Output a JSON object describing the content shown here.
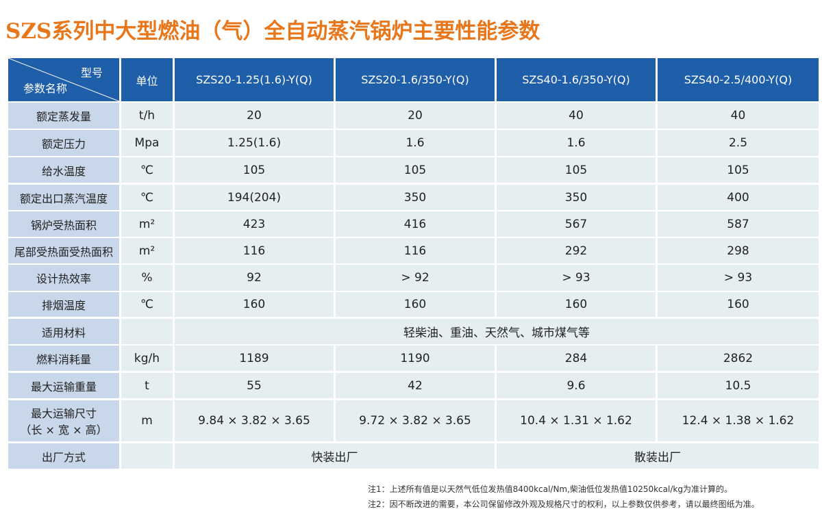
{
  "title": "SZS系列中大型燃油（气）全自动蒸汽锅炉主要性能参数",
  "table": {
    "header": {
      "model_label": "型号",
      "param_label": "参数名称",
      "unit": "单位",
      "models": [
        "SZS20-1.25(1.6)-Y(Q)",
        "SZS20-1.6/350-Y(Q)",
        "SZS40-1.6/350-Y(Q)",
        "SZS40-2.5/400-Y(Q)"
      ]
    },
    "rows": [
      {
        "label": [
          "额定蒸发量"
        ],
        "unit": "t/h",
        "values": [
          "20",
          "20",
          "40",
          "40"
        ]
      },
      {
        "label": [
          "额定压力"
        ],
        "unit": "Mpa",
        "values": [
          "1.25(1.6)",
          "1.6",
          "1.6",
          "2.5"
        ]
      },
      {
        "label": [
          "给水温度"
        ],
        "unit": "℃",
        "values": [
          "105",
          "105",
          "105",
          "105"
        ]
      },
      {
        "label": [
          "额定出口蒸汽温度"
        ],
        "unit": "℃",
        "values": [
          "194(204)",
          "350",
          "350",
          "400"
        ]
      },
      {
        "label": [
          "锅炉受热面积"
        ],
        "unit": "m²",
        "values": [
          "423",
          "416",
          "567",
          "587"
        ]
      },
      {
        "label": [
          "尾部受热面受热面积"
        ],
        "unit": "m²",
        "values": [
          "116",
          "116",
          "292",
          "298"
        ]
      },
      {
        "label": [
          "设计热效率"
        ],
        "unit": "%",
        "values": [
          "92",
          "> 92",
          "> 93",
          "> 93"
        ]
      },
      {
        "label": [
          "排烟温度"
        ],
        "unit": "℃",
        "values": [
          "160",
          "160",
          "160",
          "160"
        ]
      },
      {
        "label": [
          "适用材料"
        ],
        "values": [
          "轻柴油、重油、天然气、城市煤气等"
        ]
      },
      {
        "label": [
          "燃料消耗量"
        ],
        "unit": "kg/h",
        "values": [
          "1189",
          "1190",
          "284",
          "2862"
        ]
      },
      {
        "label": [
          "最大运输重量"
        ],
        "unit": "t",
        "values": [
          "55",
          "42",
          "9.6",
          "10.5"
        ]
      },
      {
        "label": [
          "最大运输尺寸",
          "（长 × 宽 × 高）"
        ],
        "unit": "m",
        "values": [
          "9.84 × 3.82 × 3.65",
          "9.72 × 3.82 × 3.65",
          "10.4 × 1.31 × 1.62",
          "12.4 × 1.38 × 1.62"
        ]
      },
      {
        "label": [
          "出厂方式"
        ],
        "values": [
          "快装出厂",
          "散装出厂"
        ]
      }
    ]
  },
  "notes": [
    "注1：上述所有值是以天然气低位发热值8400kcal/Nm,柴油低位发热值10250kcal/kg为准计算的。",
    "注2：因不断改进的需要，本公司保留修改外观及规格尺寸的权利，以上参数仅供参考，请以最终图纸为准。"
  ]
}
